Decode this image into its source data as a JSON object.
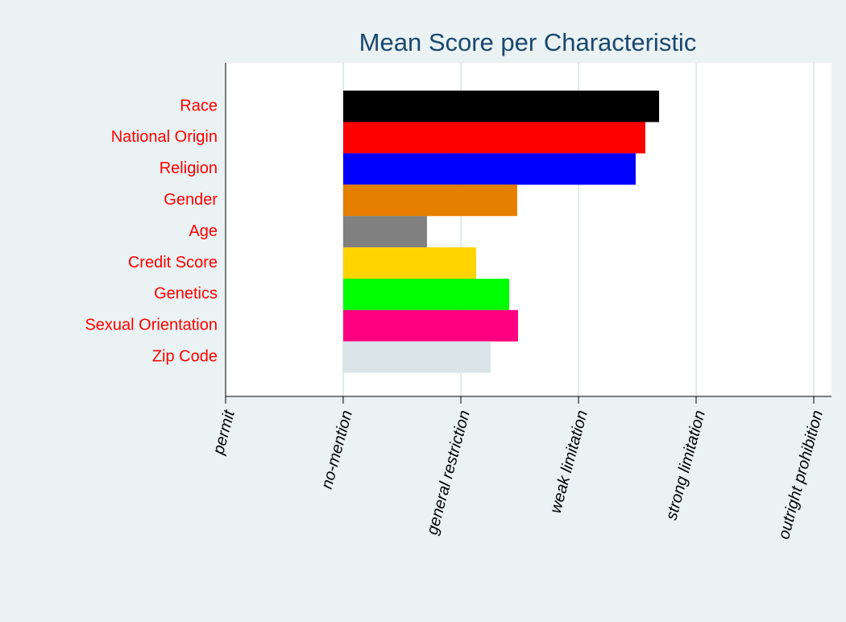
{
  "chart_data": {
    "type": "bar",
    "orientation": "horizontal",
    "title": "Mean Score per Characteristic",
    "categories": [
      "Race",
      "National Origin",
      "Religion",
      "Gender",
      "Age",
      "Credit Score",
      "Genetics",
      "Sexual Orientation",
      "Zip Code"
    ],
    "values": [
      2.685,
      2.568,
      2.486,
      1.479,
      0.712,
      1.13,
      1.411,
      1.486,
      1.253
    ],
    "colors": [
      "#000000",
      "#ff0000",
      "#0000ff",
      "#e67e00",
      "#808080",
      "#ffd400",
      "#00ff00",
      "#ff0080",
      "#dae4e9"
    ],
    "xlim": [
      -1,
      4
    ],
    "xticks": [
      {
        "value": -1,
        "label": "permit"
      },
      {
        "value": 0,
        "label": "no-mention"
      },
      {
        "value": 1,
        "label": "general restriction"
      },
      {
        "value": 2,
        "label": "weak limitation"
      },
      {
        "value": 3,
        "label": "strong limitation"
      },
      {
        "value": 4,
        "label": "outright prohibition"
      }
    ],
    "grid": true
  }
}
